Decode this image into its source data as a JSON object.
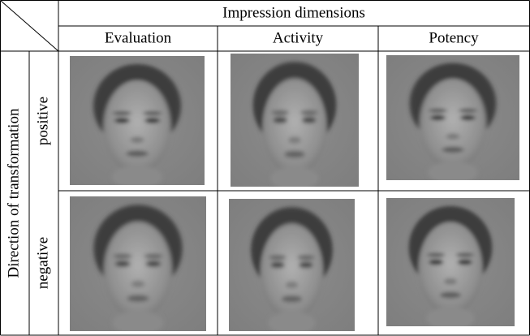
{
  "header": {
    "title": "Impression dimensions",
    "columns": [
      "Evaluation",
      "Activity",
      "Potency"
    ]
  },
  "row_group": "Direction of transformation",
  "rows": [
    "positive",
    "negative"
  ]
}
